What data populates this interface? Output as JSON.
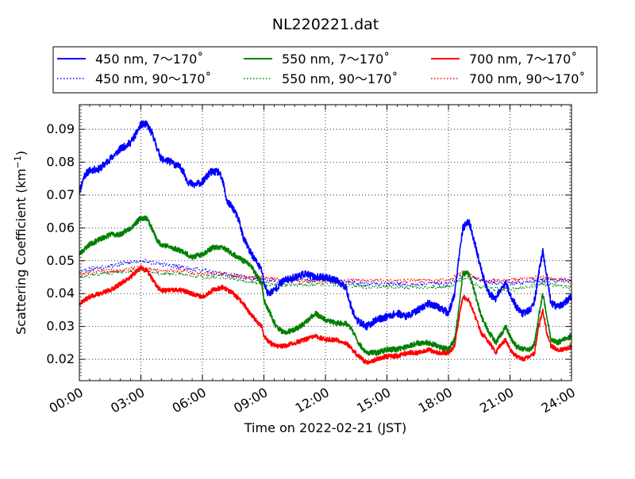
{
  "chart_data": {
    "type": "line",
    "title": "NL220221.dat",
    "xlabel": "Time on 2022-02-21 (JST)",
    "ylabel_main": "Scattering Coefficient (km",
    "ylabel_sup": "−1",
    "ylabel_tail": ")",
    "xlim": [
      0,
      24
    ],
    "ylim": [
      0.0135,
      0.0975
    ],
    "x_ticks": [
      {
        "value": 0,
        "label": "00:00"
      },
      {
        "value": 3,
        "label": "03:00"
      },
      {
        "value": 6,
        "label": "06:00"
      },
      {
        "value": 9,
        "label": "09:00"
      },
      {
        "value": 12,
        "label": "12:00"
      },
      {
        "value": 15,
        "label": "15:00"
      },
      {
        "value": 18,
        "label": "18:00"
      },
      {
        "value": 21,
        "label": "21:00"
      },
      {
        "value": 24,
        "label": "24:00"
      }
    ],
    "y_ticks": [
      {
        "value": 0.02,
        "label": "0.02"
      },
      {
        "value": 0.03,
        "label": "0.03"
      },
      {
        "value": 0.04,
        "label": "0.04"
      },
      {
        "value": 0.05,
        "label": "0.05"
      },
      {
        "value": 0.06,
        "label": "0.06"
      },
      {
        "value": 0.07,
        "label": "0.07"
      },
      {
        "value": 0.08,
        "label": "0.08"
      },
      {
        "value": 0.09,
        "label": "0.09"
      }
    ],
    "grid": true,
    "legend_position": "top",
    "series": [
      {
        "name": "450 nm, 7～170˚",
        "color": "#0000ff",
        "style": "solid",
        "noise": 0.0011,
        "seed": 11,
        "x": [
          0.0,
          0.25,
          0.5,
          1.0,
          1.5,
          2.0,
          2.5,
          2.8,
          3.0,
          3.3,
          3.6,
          3.8,
          4.0,
          4.5,
          5.0,
          5.3,
          5.6,
          6.0,
          6.4,
          6.8,
          7.0,
          7.2,
          7.5,
          7.8,
          8.0,
          8.3,
          8.6,
          8.9,
          9.0,
          9.2,
          9.5,
          9.8,
          10.0,
          10.5,
          11.0,
          11.5,
          12.0,
          12.5,
          13.0,
          13.2,
          13.5,
          14.0,
          14.5,
          15.0,
          15.5,
          16.0,
          16.5,
          17.0,
          17.5,
          18.0,
          18.3,
          18.5,
          18.7,
          19.0,
          19.3,
          19.6,
          19.8,
          20.0,
          20.3,
          20.5,
          20.8,
          21.0,
          21.3,
          21.6,
          22.0,
          22.2,
          22.4,
          22.6,
          22.8,
          23.0,
          23.3,
          23.6,
          24.0
        ],
        "y": [
          0.071,
          0.076,
          0.0775,
          0.078,
          0.081,
          0.084,
          0.086,
          0.089,
          0.0915,
          0.0915,
          0.088,
          0.084,
          0.081,
          0.08,
          0.078,
          0.074,
          0.073,
          0.074,
          0.077,
          0.077,
          0.074,
          0.068,
          0.066,
          0.062,
          0.057,
          0.053,
          0.05,
          0.047,
          0.043,
          0.04,
          0.041,
          0.043,
          0.044,
          0.045,
          0.046,
          0.045,
          0.045,
          0.044,
          0.042,
          0.037,
          0.032,
          0.03,
          0.032,
          0.033,
          0.034,
          0.033,
          0.035,
          0.037,
          0.036,
          0.034,
          0.04,
          0.05,
          0.06,
          0.062,
          0.055,
          0.047,
          0.043,
          0.04,
          0.038,
          0.041,
          0.043,
          0.04,
          0.036,
          0.034,
          0.035,
          0.038,
          0.046,
          0.053,
          0.045,
          0.037,
          0.036,
          0.037,
          0.039
        ]
      },
      {
        "name": "550 nm, 7～170˚",
        "color": "#008000",
        "style": "solid",
        "noise": 0.0008,
        "seed": 23,
        "x": [
          0.0,
          0.5,
          1.0,
          1.5,
          2.0,
          2.5,
          3.0,
          3.3,
          3.6,
          3.8,
          4.0,
          4.5,
          5.0,
          5.5,
          6.0,
          6.5,
          7.0,
          7.5,
          8.0,
          8.3,
          8.6,
          8.9,
          9.0,
          9.3,
          9.6,
          10.0,
          10.5,
          11.0,
          11.5,
          12.0,
          12.5,
          13.0,
          13.3,
          13.6,
          14.0,
          14.5,
          15.0,
          15.5,
          16.0,
          16.5,
          17.0,
          17.5,
          18.0,
          18.3,
          18.5,
          18.7,
          19.0,
          19.3,
          19.6,
          20.0,
          20.3,
          20.5,
          20.8,
          21.0,
          21.3,
          21.6,
          22.0,
          22.2,
          22.4,
          22.6,
          22.8,
          23.0,
          23.3,
          23.6,
          24.0
        ],
        "y": [
          0.052,
          0.055,
          0.0565,
          0.058,
          0.058,
          0.06,
          0.063,
          0.063,
          0.059,
          0.056,
          0.055,
          0.054,
          0.053,
          0.051,
          0.052,
          0.054,
          0.054,
          0.052,
          0.05,
          0.049,
          0.046,
          0.043,
          0.038,
          0.034,
          0.03,
          0.028,
          0.029,
          0.031,
          0.034,
          0.032,
          0.031,
          0.031,
          0.029,
          0.025,
          0.022,
          0.022,
          0.023,
          0.023,
          0.024,
          0.025,
          0.025,
          0.024,
          0.023,
          0.026,
          0.035,
          0.046,
          0.046,
          0.04,
          0.033,
          0.028,
          0.025,
          0.027,
          0.03,
          0.027,
          0.024,
          0.023,
          0.023,
          0.025,
          0.033,
          0.04,
          0.033,
          0.026,
          0.025,
          0.026,
          0.027
        ]
      },
      {
        "name": "700 nm, 7～170˚",
        "color": "#ff0000",
        "style": "solid",
        "noise": 0.0007,
        "seed": 37,
        "x": [
          0.0,
          0.5,
          1.0,
          1.5,
          2.0,
          2.5,
          3.0,
          3.3,
          3.6,
          3.8,
          4.0,
          4.5,
          5.0,
          5.5,
          6.0,
          6.5,
          7.0,
          7.5,
          8.0,
          8.3,
          8.6,
          8.9,
          9.0,
          9.3,
          9.6,
          10.0,
          10.5,
          11.0,
          11.5,
          12.0,
          12.5,
          13.0,
          13.3,
          13.6,
          14.0,
          14.5,
          15.0,
          15.5,
          16.0,
          16.5,
          17.0,
          17.5,
          18.0,
          18.3,
          18.5,
          18.7,
          19.0,
          19.3,
          19.6,
          20.0,
          20.3,
          20.5,
          20.8,
          21.0,
          21.3,
          21.6,
          22.0,
          22.2,
          22.4,
          22.6,
          22.8,
          23.0,
          23.3,
          23.6,
          24.0
        ],
        "y": [
          0.037,
          0.039,
          0.04,
          0.041,
          0.043,
          0.045,
          0.048,
          0.047,
          0.044,
          0.042,
          0.041,
          0.041,
          0.041,
          0.04,
          0.039,
          0.041,
          0.042,
          0.04,
          0.037,
          0.034,
          0.032,
          0.03,
          0.027,
          0.025,
          0.024,
          0.024,
          0.025,
          0.026,
          0.027,
          0.026,
          0.026,
          0.025,
          0.023,
          0.021,
          0.019,
          0.02,
          0.021,
          0.021,
          0.022,
          0.022,
          0.023,
          0.022,
          0.022,
          0.024,
          0.032,
          0.039,
          0.038,
          0.033,
          0.028,
          0.025,
          0.022,
          0.024,
          0.026,
          0.023,
          0.021,
          0.02,
          0.021,
          0.022,
          0.03,
          0.035,
          0.028,
          0.024,
          0.023,
          0.023,
          0.024
        ]
      },
      {
        "name": "450 nm, 90～170˚",
        "color": "#0000ff",
        "style": "dotted",
        "noise": 0.0007,
        "seed": 53,
        "x": [
          0.0,
          1.0,
          2.0,
          3.0,
          4.0,
          5.0,
          6.0,
          7.0,
          8.0,
          9.0,
          10.0,
          12.0,
          14.0,
          16.0,
          18.0,
          18.8,
          19.5,
          21.0,
          22.5,
          24.0
        ],
        "y": [
          0.047,
          0.048,
          0.049,
          0.05,
          0.049,
          0.048,
          0.047,
          0.046,
          0.045,
          0.044,
          0.044,
          0.044,
          0.043,
          0.043,
          0.043,
          0.046,
          0.044,
          0.043,
          0.044,
          0.044
        ]
      },
      {
        "name": "550 nm, 90～170˚",
        "color": "#008000",
        "style": "dotted",
        "noise": 0.0006,
        "seed": 61,
        "x": [
          0.0,
          1.0,
          2.0,
          3.0,
          4.0,
          5.0,
          6.0,
          7.0,
          8.0,
          9.0,
          10.0,
          12.0,
          14.0,
          16.0,
          18.0,
          18.8,
          19.5,
          21.0,
          22.5,
          24.0
        ],
        "y": [
          0.045,
          0.046,
          0.0465,
          0.047,
          0.046,
          0.046,
          0.045,
          0.045,
          0.044,
          0.043,
          0.0425,
          0.043,
          0.042,
          0.042,
          0.042,
          0.045,
          0.042,
          0.041,
          0.043,
          0.042
        ]
      },
      {
        "name": "700 nm, 90～170˚",
        "color": "#ff0000",
        "style": "dotted",
        "noise": 0.0006,
        "seed": 79,
        "x": [
          0.0,
          1.0,
          2.0,
          3.0,
          4.0,
          5.0,
          6.0,
          7.0,
          8.0,
          9.0,
          10.0,
          12.0,
          14.0,
          16.0,
          18.0,
          18.8,
          19.5,
          21.0,
          22.5,
          24.0
        ],
        "y": [
          0.046,
          0.047,
          0.047,
          0.048,
          0.047,
          0.047,
          0.046,
          0.046,
          0.045,
          0.045,
          0.044,
          0.044,
          0.044,
          0.044,
          0.044,
          0.047,
          0.044,
          0.044,
          0.045,
          0.044
        ]
      }
    ]
  },
  "legend": {
    "items": [
      {
        "label": "450 nm, 7～170˚",
        "color": "#0000ff",
        "style": "solid"
      },
      {
        "label": "550 nm, 7～170˚",
        "color": "#008000",
        "style": "solid"
      },
      {
        "label": "700 nm, 7～170˚",
        "color": "#ff0000",
        "style": "solid"
      },
      {
        "label": "450 nm, 90～170˚",
        "color": "#0000ff",
        "style": "dotted"
      },
      {
        "label": "550 nm, 90～170˚",
        "color": "#008000",
        "style": "dotted"
      },
      {
        "label": "700 nm, 90～170˚",
        "color": "#ff0000",
        "style": "dotted"
      }
    ]
  }
}
